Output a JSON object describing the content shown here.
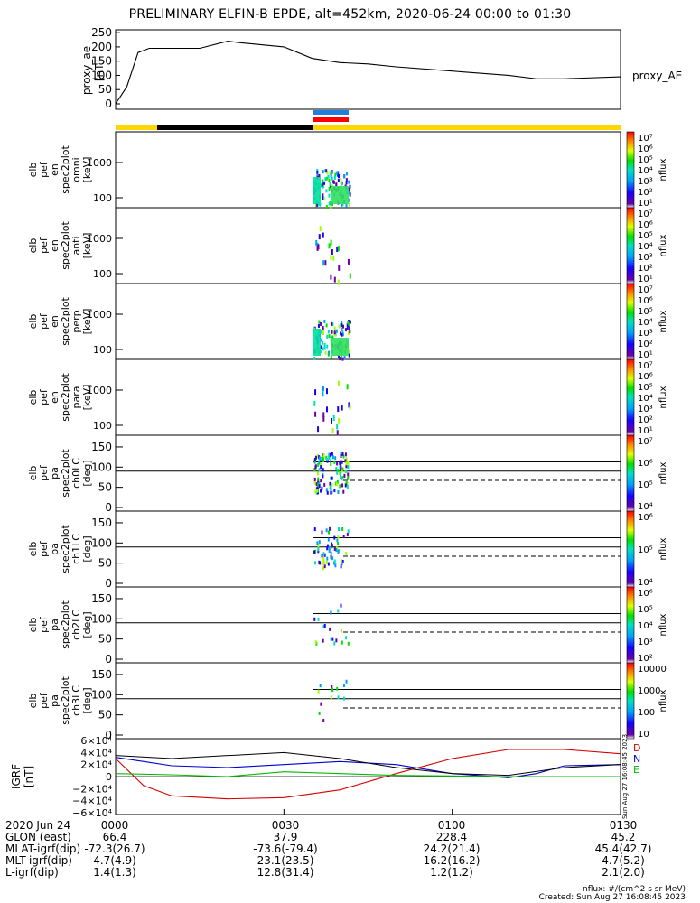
{
  "title": "PRELIMINARY ELFIN-B EPDE, alt=452km, 2020-06-24 00:00 to 01:30",
  "top_panel": {
    "ylabel_1": "proxy_ae",
    "ylabel_2": "[nT]",
    "yticks": [
      "250",
      "200",
      "150",
      "100",
      "50",
      "0"
    ],
    "legend": "proxy_AE"
  },
  "colors": {
    "yellow_bar": "#ffd700",
    "black_bar": "#000000",
    "blue_bar": "#1e7fe0",
    "red_bar": "#ff0000",
    "D": "#d40000",
    "N": "#0000cc",
    "E": "#00bb00",
    "geo_black": "#000000"
  },
  "spec_panels": [
    {
      "ylabel": [
        "elb",
        "pef",
        "en",
        "spec2plot",
        "omni",
        "[keV]"
      ],
      "ticks": [
        "1000",
        "100"
      ],
      "cb_ticks": [
        "10⁷",
        "10⁶",
        "10⁵",
        "10⁴",
        "10³",
        "10²",
        "10¹"
      ],
      "cb_label": "nflux"
    },
    {
      "ylabel": [
        "elb",
        "pef",
        "en",
        "spec2plot",
        "anti",
        "[keV]"
      ],
      "ticks": [
        "1000",
        "100"
      ],
      "cb_ticks": [
        "10⁷",
        "10⁶",
        "10⁵",
        "10⁴",
        "10³",
        "10²",
        "10¹"
      ],
      "cb_label": "nflux"
    },
    {
      "ylabel": [
        "elb",
        "pef",
        "en",
        "spec2plot",
        "perp",
        "[keV]"
      ],
      "ticks": [
        "1000",
        "100"
      ],
      "cb_ticks": [
        "10⁷",
        "10⁶",
        "10⁵",
        "10⁴",
        "10³",
        "10²",
        "10¹"
      ],
      "cb_label": "nflux"
    },
    {
      "ylabel": [
        "elb",
        "pef",
        "en",
        "spec2plot",
        "para",
        "[keV]"
      ],
      "ticks": [
        "1000",
        "100"
      ],
      "cb_ticks": [
        "10⁷",
        "10⁶",
        "10⁵",
        "10⁴",
        "10³",
        "10²",
        "10¹"
      ],
      "cb_label": "nflux"
    }
  ],
  "pa_panels": [
    {
      "ylabel": [
        "elb",
        "pef",
        "pa",
        "spec2plot",
        "ch0LC",
        "[deg]"
      ],
      "ticks": [
        "150",
        "100",
        "50",
        "0"
      ],
      "cb_ticks": [
        "10⁷",
        "10⁶",
        "10⁵",
        "10⁴"
      ],
      "cb_label": "nflux"
    },
    {
      "ylabel": [
        "elb",
        "pef",
        "pa",
        "spec2plot",
        "ch1LC",
        "[deg]"
      ],
      "ticks": [
        "150",
        "100",
        "50",
        "0"
      ],
      "cb_ticks": [
        "10⁶",
        "10⁵",
        "10⁴"
      ],
      "cb_label": "nflux"
    },
    {
      "ylabel": [
        "elb",
        "pef",
        "pa",
        "spec2plot",
        "ch2LC",
        "[deg]"
      ],
      "ticks": [
        "150",
        "100",
        "50",
        "0"
      ],
      "cb_ticks": [
        "10⁶",
        "10⁵",
        "10⁴",
        "10³",
        "10²"
      ],
      "cb_label": "nflux"
    },
    {
      "ylabel": [
        "elb",
        "pef",
        "pa",
        "spec2plot",
        "ch3LC",
        "[deg]"
      ],
      "ticks": [
        "150",
        "100",
        "50",
        "0"
      ],
      "cb_ticks": [
        "10000",
        "1000",
        "100",
        "10"
      ],
      "cb_label": "nflux"
    }
  ],
  "igrf_panel": {
    "ylabel_1": "IGRF",
    "ylabel_2": "[nT]",
    "yticks": [
      "6×10⁴",
      "4×10⁴",
      "2×10⁴",
      "0",
      "−2×10⁴",
      "−4×10⁴",
      "−6×10⁴"
    ],
    "legend": [
      "D",
      "N",
      "E"
    ],
    "stamp": "Sun Aug 27 16:08:45 2023"
  },
  "xaxis": {
    "rows": [
      {
        "label": "2020 Jun 24",
        "v": [
          "0000",
          "0030",
          "0100",
          "0130"
        ]
      },
      {
        "label": "GLON (east)",
        "v": [
          "66.4",
          "37.9",
          "228.4",
          "45.2"
        ]
      },
      {
        "label": "MLAT-igrf(dip)",
        "v": [
          "-72.3(26.7)",
          "-73.6(-79.4)",
          "24.2(21.4)",
          "45.4(42.7)"
        ]
      },
      {
        "label": "MLT-igrf(dip)",
        "v": [
          "4.7(4.9)",
          "23.1(23.5)",
          "16.2(16.2)",
          "4.7(5.2)"
        ]
      },
      {
        "label": "L-igrf(dip)",
        "v": [
          "1.4(1.3)",
          "12.8(31.4)",
          "1.2(1.2)",
          "2.1(2.0)"
        ]
      }
    ]
  },
  "footer": {
    "line1": "nflux: #/(cm^2 s sr MeV)",
    "line2": "Created: Sun Aug 27 16:08:45 2023"
  },
  "chart_data": {
    "type": "line",
    "title": "PRELIMINARY ELFIN-B EPDE, alt=452km, 2020-06-24 00:00 to 01:30",
    "x_minutes_ticks": [
      "0000",
      "0030",
      "0100",
      "0130"
    ],
    "proxy_ae": {
      "x_min": [
        0,
        2,
        4,
        6,
        15,
        20,
        22,
        30,
        35,
        40,
        45,
        50,
        60,
        70,
        75,
        80,
        90
      ],
      "y": [
        0,
        60,
        180,
        195,
        195,
        220,
        215,
        200,
        160,
        145,
        140,
        130,
        115,
        100,
        88,
        88,
        95
      ],
      "ylim": [
        0,
        260
      ]
    },
    "igrf": {
      "ylim": [
        -60000,
        60000
      ],
      "series": [
        {
          "name": "D",
          "x": [
            0,
            5,
            10,
            20,
            30,
            40,
            50,
            60,
            70,
            80,
            90
          ],
          "y": [
            30000,
            -15000,
            -32000,
            -37000,
            -35000,
            -22000,
            5000,
            30000,
            45000,
            45000,
            38000
          ]
        },
        {
          "name": "N",
          "x": [
            0,
            5,
            10,
            20,
            30,
            40,
            50,
            60,
            70,
            75,
            80,
            90
          ],
          "y": [
            32000,
            25000,
            18000,
            15000,
            20000,
            25000,
            20000,
            5000,
            -2000,
            5000,
            18000,
            20000
          ]
        },
        {
          "name": "E",
          "x": [
            0,
            10,
            20,
            30,
            40,
            50,
            60,
            70,
            80,
            90
          ],
          "y": [
            5000,
            3000,
            0,
            8000,
            5000,
            2000,
            1000,
            0,
            0,
            0
          ]
        }
      ]
    }
  }
}
